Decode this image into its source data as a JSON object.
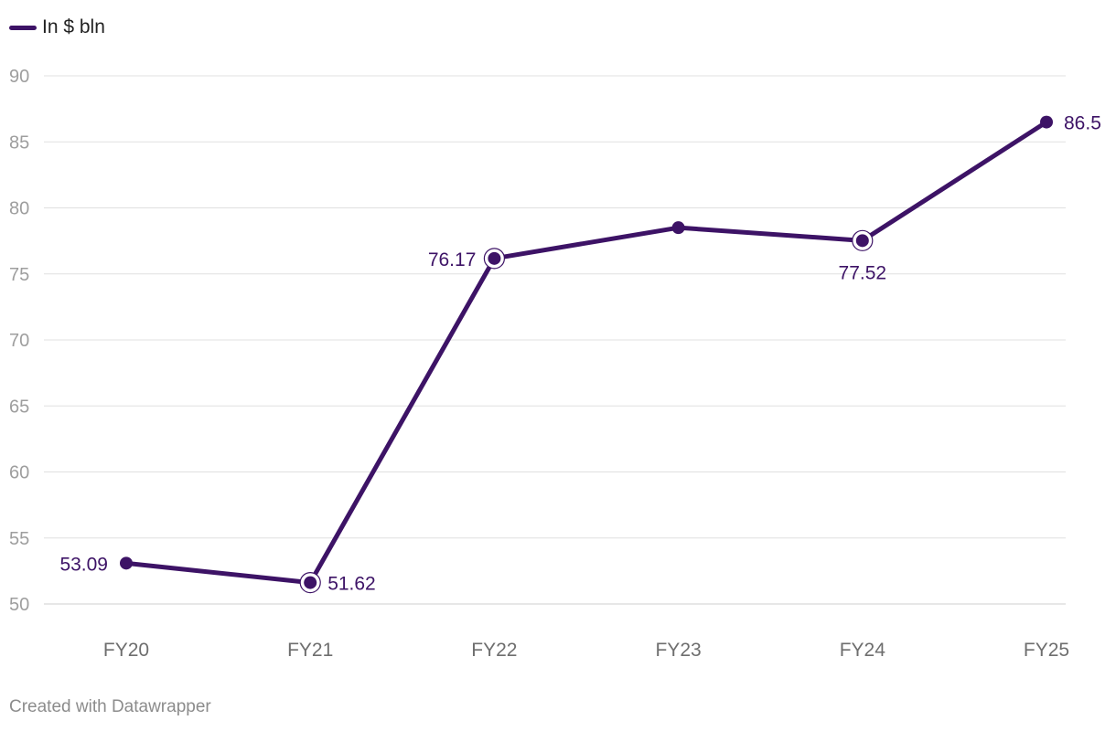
{
  "chart_data": {
    "type": "line",
    "categories": [
      "FY20",
      "FY21",
      "FY22",
      "FY23",
      "FY24",
      "FY25"
    ],
    "series": [
      {
        "name": "In $ bln",
        "values": [
          53.09,
          51.62,
          76.17,
          78.5,
          77.52,
          86.5
        ],
        "color": "#3d1366"
      }
    ],
    "data_labels": [
      {
        "index": 0,
        "text": "53.09",
        "position": "left"
      },
      {
        "index": 1,
        "text": "51.62",
        "position": "right"
      },
      {
        "index": 2,
        "text": "76.17",
        "position": "left"
      },
      {
        "index": 4,
        "text": "77.52",
        "position": "below"
      },
      {
        "index": 5,
        "text": "86.5",
        "position": "right"
      }
    ],
    "highlighted_points": [
      1,
      2,
      4
    ],
    "ylim": [
      50,
      90
    ],
    "yticks": [
      50,
      55,
      60,
      65,
      70,
      75,
      80,
      85,
      90
    ],
    "grid": true,
    "legend_position": "top-left"
  },
  "legend": {
    "label": "In $ bln"
  },
  "footer": {
    "credit": "Created with Datawrapper"
  },
  "colors": {
    "series": "#3d1366",
    "grid": "#e0e0e0",
    "baseline": "#cfcfcf"
  }
}
